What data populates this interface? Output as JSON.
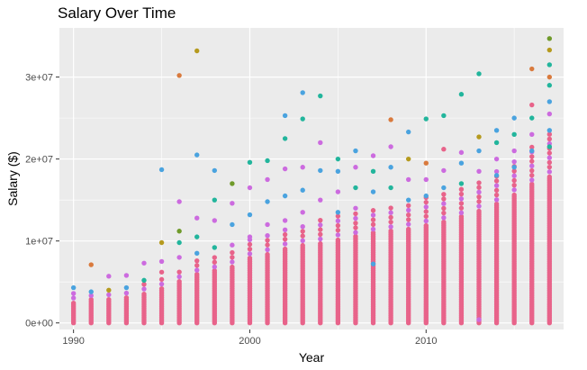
{
  "chart_data": {
    "type": "scatter",
    "title": "Salary Over Time",
    "xlabel": "Year",
    "ylabel": "Salary ($)",
    "xlim": [
      1989.2,
      2017.8
    ],
    "ylim": [
      -800000,
      36000000
    ],
    "x_ticks": [
      1990,
      2000,
      2010
    ],
    "x_tick_labels": [
      "1990",
      "2000",
      "2010"
    ],
    "y_ticks": [
      0,
      10000000,
      20000000,
      30000000
    ],
    "y_tick_labels": [
      "0e+00",
      "1e+07",
      "2e+07",
      "3e+07"
    ],
    "grid": true,
    "legend": "none",
    "colors": {
      "panel_background": "#ebebeb",
      "grid_major": "#ffffff",
      "primary_points": "#e8638a",
      "secondary_points": "#cc6bdf",
      "accent_points": [
        "#4aa3df",
        "#22b59c",
        "#6f9a2a",
        "#b59a1e",
        "#d97a3d",
        "#cc6bdf"
      ]
    },
    "years": [
      1990,
      1991,
      1992,
      1993,
      1994,
      1995,
      1996,
      1997,
      1998,
      1999,
      2000,
      2001,
      2002,
      2003,
      2004,
      2005,
      2006,
      2007,
      2008,
      2009,
      2010,
      2011,
      2012,
      2013,
      2014,
      2015,
      2016,
      2017
    ],
    "dense_max": [
      2600000,
      2900000,
      3000000,
      3200000,
      3700000,
      4300000,
      5200000,
      6000000,
      6400000,
      7000000,
      8000000,
      8500000,
      9200000,
      9600000,
      9800000,
      10300000,
      10600000,
      11000000,
      11300000,
      11600000,
      12000000,
      12400000,
      13000000,
      13800000,
      14600000,
      15800000,
      17000000,
      18000000
    ],
    "outliers": [
      {
        "x": 1990,
        "y": 4300000,
        "color": "#4aa3df"
      },
      {
        "x": 1990,
        "y": 3600000,
        "color": "#cc6bdf"
      },
      {
        "x": 1991,
        "y": 7100000,
        "color": "#d97a3d"
      },
      {
        "x": 1991,
        "y": 3800000,
        "color": "#4aa3df"
      },
      {
        "x": 1992,
        "y": 5700000,
        "color": "#cc6bdf"
      },
      {
        "x": 1992,
        "y": 4000000,
        "color": "#b59a1e"
      },
      {
        "x": 1993,
        "y": 5800000,
        "color": "#cc6bdf"
      },
      {
        "x": 1993,
        "y": 4300000,
        "color": "#4aa3df"
      },
      {
        "x": 1994,
        "y": 7300000,
        "color": "#cc6bdf"
      },
      {
        "x": 1994,
        "y": 5200000,
        "color": "#22b59c"
      },
      {
        "x": 1995,
        "y": 18700000,
        "color": "#4aa3df"
      },
      {
        "x": 1995,
        "y": 9800000,
        "color": "#b59a1e"
      },
      {
        "x": 1995,
        "y": 7500000,
        "color": "#cc6bdf"
      },
      {
        "x": 1995,
        "y": 6200000,
        "color": "#e8638a"
      },
      {
        "x": 1996,
        "y": 30200000,
        "color": "#d97a3d"
      },
      {
        "x": 1996,
        "y": 14800000,
        "color": "#cc6bdf"
      },
      {
        "x": 1996,
        "y": 11200000,
        "color": "#6f9a2a"
      },
      {
        "x": 1996,
        "y": 9800000,
        "color": "#22b59c"
      },
      {
        "x": 1996,
        "y": 8000000,
        "color": "#cc6bdf"
      },
      {
        "x": 1997,
        "y": 33200000,
        "color": "#b59a1e"
      },
      {
        "x": 1997,
        "y": 20500000,
        "color": "#4aa3df"
      },
      {
        "x": 1997,
        "y": 12800000,
        "color": "#cc6bdf"
      },
      {
        "x": 1997,
        "y": 10500000,
        "color": "#22b59c"
      },
      {
        "x": 1997,
        "y": 8500000,
        "color": "#4aa3df"
      },
      {
        "x": 1998,
        "y": 18600000,
        "color": "#4aa3df"
      },
      {
        "x": 1998,
        "y": 15000000,
        "color": "#22b59c"
      },
      {
        "x": 1998,
        "y": 12500000,
        "color": "#cc6bdf"
      },
      {
        "x": 1998,
        "y": 9200000,
        "color": "#22b59c"
      },
      {
        "x": 1999,
        "y": 17000000,
        "color": "#6f9a2a"
      },
      {
        "x": 1999,
        "y": 14600000,
        "color": "#cc6bdf"
      },
      {
        "x": 1999,
        "y": 12000000,
        "color": "#4aa3df"
      },
      {
        "x": 1999,
        "y": 9500000,
        "color": "#cc6bdf"
      },
      {
        "x": 2000,
        "y": 19600000,
        "color": "#22b59c"
      },
      {
        "x": 2000,
        "y": 16500000,
        "color": "#cc6bdf"
      },
      {
        "x": 2000,
        "y": 13200000,
        "color": "#4aa3df"
      },
      {
        "x": 2000,
        "y": 10500000,
        "color": "#cc6bdf"
      },
      {
        "x": 2001,
        "y": 19800000,
        "color": "#22b59c"
      },
      {
        "x": 2001,
        "y": 17500000,
        "color": "#cc6bdf"
      },
      {
        "x": 2001,
        "y": 14800000,
        "color": "#4aa3df"
      },
      {
        "x": 2001,
        "y": 12000000,
        "color": "#cc6bdf"
      },
      {
        "x": 2002,
        "y": 25300000,
        "color": "#4aa3df"
      },
      {
        "x": 2002,
        "y": 22500000,
        "color": "#22b59c"
      },
      {
        "x": 2002,
        "y": 18800000,
        "color": "#cc6bdf"
      },
      {
        "x": 2002,
        "y": 15500000,
        "color": "#4aa3df"
      },
      {
        "x": 2002,
        "y": 12500000,
        "color": "#cc6bdf"
      },
      {
        "x": 2003,
        "y": 28100000,
        "color": "#4aa3df"
      },
      {
        "x": 2003,
        "y": 24900000,
        "color": "#22b59c"
      },
      {
        "x": 2003,
        "y": 19000000,
        "color": "#cc6bdf"
      },
      {
        "x": 2003,
        "y": 16200000,
        "color": "#4aa3df"
      },
      {
        "x": 2003,
        "y": 13500000,
        "color": "#cc6bdf"
      },
      {
        "x": 2004,
        "y": 27700000,
        "color": "#22b59c"
      },
      {
        "x": 2004,
        "y": 22000000,
        "color": "#cc6bdf"
      },
      {
        "x": 2004,
        "y": 18600000,
        "color": "#4aa3df"
      },
      {
        "x": 2004,
        "y": 15000000,
        "color": "#cc6bdf"
      },
      {
        "x": 2005,
        "y": 20000000,
        "color": "#22b59c"
      },
      {
        "x": 2005,
        "y": 18500000,
        "color": "#4aa3df"
      },
      {
        "x": 2005,
        "y": 16000000,
        "color": "#cc6bdf"
      },
      {
        "x": 2005,
        "y": 13500000,
        "color": "#4aa3df"
      },
      {
        "x": 2006,
        "y": 21000000,
        "color": "#4aa3df"
      },
      {
        "x": 2006,
        "y": 19000000,
        "color": "#cc6bdf"
      },
      {
        "x": 2006,
        "y": 16500000,
        "color": "#22b59c"
      },
      {
        "x": 2006,
        "y": 14000000,
        "color": "#cc6bdf"
      },
      {
        "x": 2007,
        "y": 20400000,
        "color": "#cc6bdf"
      },
      {
        "x": 2007,
        "y": 18500000,
        "color": "#22b59c"
      },
      {
        "x": 2007,
        "y": 16000000,
        "color": "#4aa3df"
      },
      {
        "x": 2007,
        "y": 7200000,
        "color": "#4aa3df"
      },
      {
        "x": 2008,
        "y": 24800000,
        "color": "#d97a3d"
      },
      {
        "x": 2008,
        "y": 21500000,
        "color": "#cc6bdf"
      },
      {
        "x": 2008,
        "y": 19000000,
        "color": "#4aa3df"
      },
      {
        "x": 2008,
        "y": 16500000,
        "color": "#22b59c"
      },
      {
        "x": 2009,
        "y": 23300000,
        "color": "#4aa3df"
      },
      {
        "x": 2009,
        "y": 20000000,
        "color": "#b59a1e"
      },
      {
        "x": 2009,
        "y": 17500000,
        "color": "#cc6bdf"
      },
      {
        "x": 2009,
        "y": 15000000,
        "color": "#4aa3df"
      },
      {
        "x": 2010,
        "y": 24900000,
        "color": "#22b59c"
      },
      {
        "x": 2010,
        "y": 19500000,
        "color": "#d97a3d"
      },
      {
        "x": 2010,
        "y": 17500000,
        "color": "#cc6bdf"
      },
      {
        "x": 2010,
        "y": 15500000,
        "color": "#4aa3df"
      },
      {
        "x": 2011,
        "y": 25300000,
        "color": "#22b59c"
      },
      {
        "x": 2011,
        "y": 21200000,
        "color": "#e8638a"
      },
      {
        "x": 2011,
        "y": 18600000,
        "color": "#cc6bdf"
      },
      {
        "x": 2011,
        "y": 16500000,
        "color": "#4aa3df"
      },
      {
        "x": 2012,
        "y": 27900000,
        "color": "#22b59c"
      },
      {
        "x": 2012,
        "y": 20800000,
        "color": "#cc6bdf"
      },
      {
        "x": 2012,
        "y": 19500000,
        "color": "#4aa3df"
      },
      {
        "x": 2012,
        "y": 17000000,
        "color": "#22b59c"
      },
      {
        "x": 2013,
        "y": 30400000,
        "color": "#22b59c"
      },
      {
        "x": 2013,
        "y": 22700000,
        "color": "#b59a1e"
      },
      {
        "x": 2013,
        "y": 21000000,
        "color": "#4aa3df"
      },
      {
        "x": 2013,
        "y": 18500000,
        "color": "#cc6bdf"
      },
      {
        "x": 2013,
        "y": 400000,
        "color": "#cc6bdf"
      },
      {
        "x": 2014,
        "y": 23500000,
        "color": "#4aa3df"
      },
      {
        "x": 2014,
        "y": 22000000,
        "color": "#22b59c"
      },
      {
        "x": 2014,
        "y": 20000000,
        "color": "#cc6bdf"
      },
      {
        "x": 2014,
        "y": 18000000,
        "color": "#4aa3df"
      },
      {
        "x": 2015,
        "y": 25000000,
        "color": "#4aa3df"
      },
      {
        "x": 2015,
        "y": 23000000,
        "color": "#22b59c"
      },
      {
        "x": 2015,
        "y": 21000000,
        "color": "#cc6bdf"
      },
      {
        "x": 2015,
        "y": 19000000,
        "color": "#4aa3df"
      },
      {
        "x": 2016,
        "y": 31000000,
        "color": "#d97a3d"
      },
      {
        "x": 2016,
        "y": 26600000,
        "color": "#e8638a"
      },
      {
        "x": 2016,
        "y": 25000000,
        "color": "#22b59c"
      },
      {
        "x": 2016,
        "y": 23000000,
        "color": "#cc6bdf"
      },
      {
        "x": 2016,
        "y": 21000000,
        "color": "#4aa3df"
      },
      {
        "x": 2017,
        "y": 34700000,
        "color": "#6f9a2a"
      },
      {
        "x": 2017,
        "y": 33300000,
        "color": "#b59a1e"
      },
      {
        "x": 2017,
        "y": 31500000,
        "color": "#22b59c"
      },
      {
        "x": 2017,
        "y": 30000000,
        "color": "#d97a3d"
      },
      {
        "x": 2017,
        "y": 29000000,
        "color": "#22b59c"
      },
      {
        "x": 2017,
        "y": 27000000,
        "color": "#4aa3df"
      },
      {
        "x": 2017,
        "y": 25500000,
        "color": "#cc6bdf"
      },
      {
        "x": 2017,
        "y": 23500000,
        "color": "#4aa3df"
      },
      {
        "x": 2017,
        "y": 21500000,
        "color": "#22b59c"
      }
    ]
  }
}
